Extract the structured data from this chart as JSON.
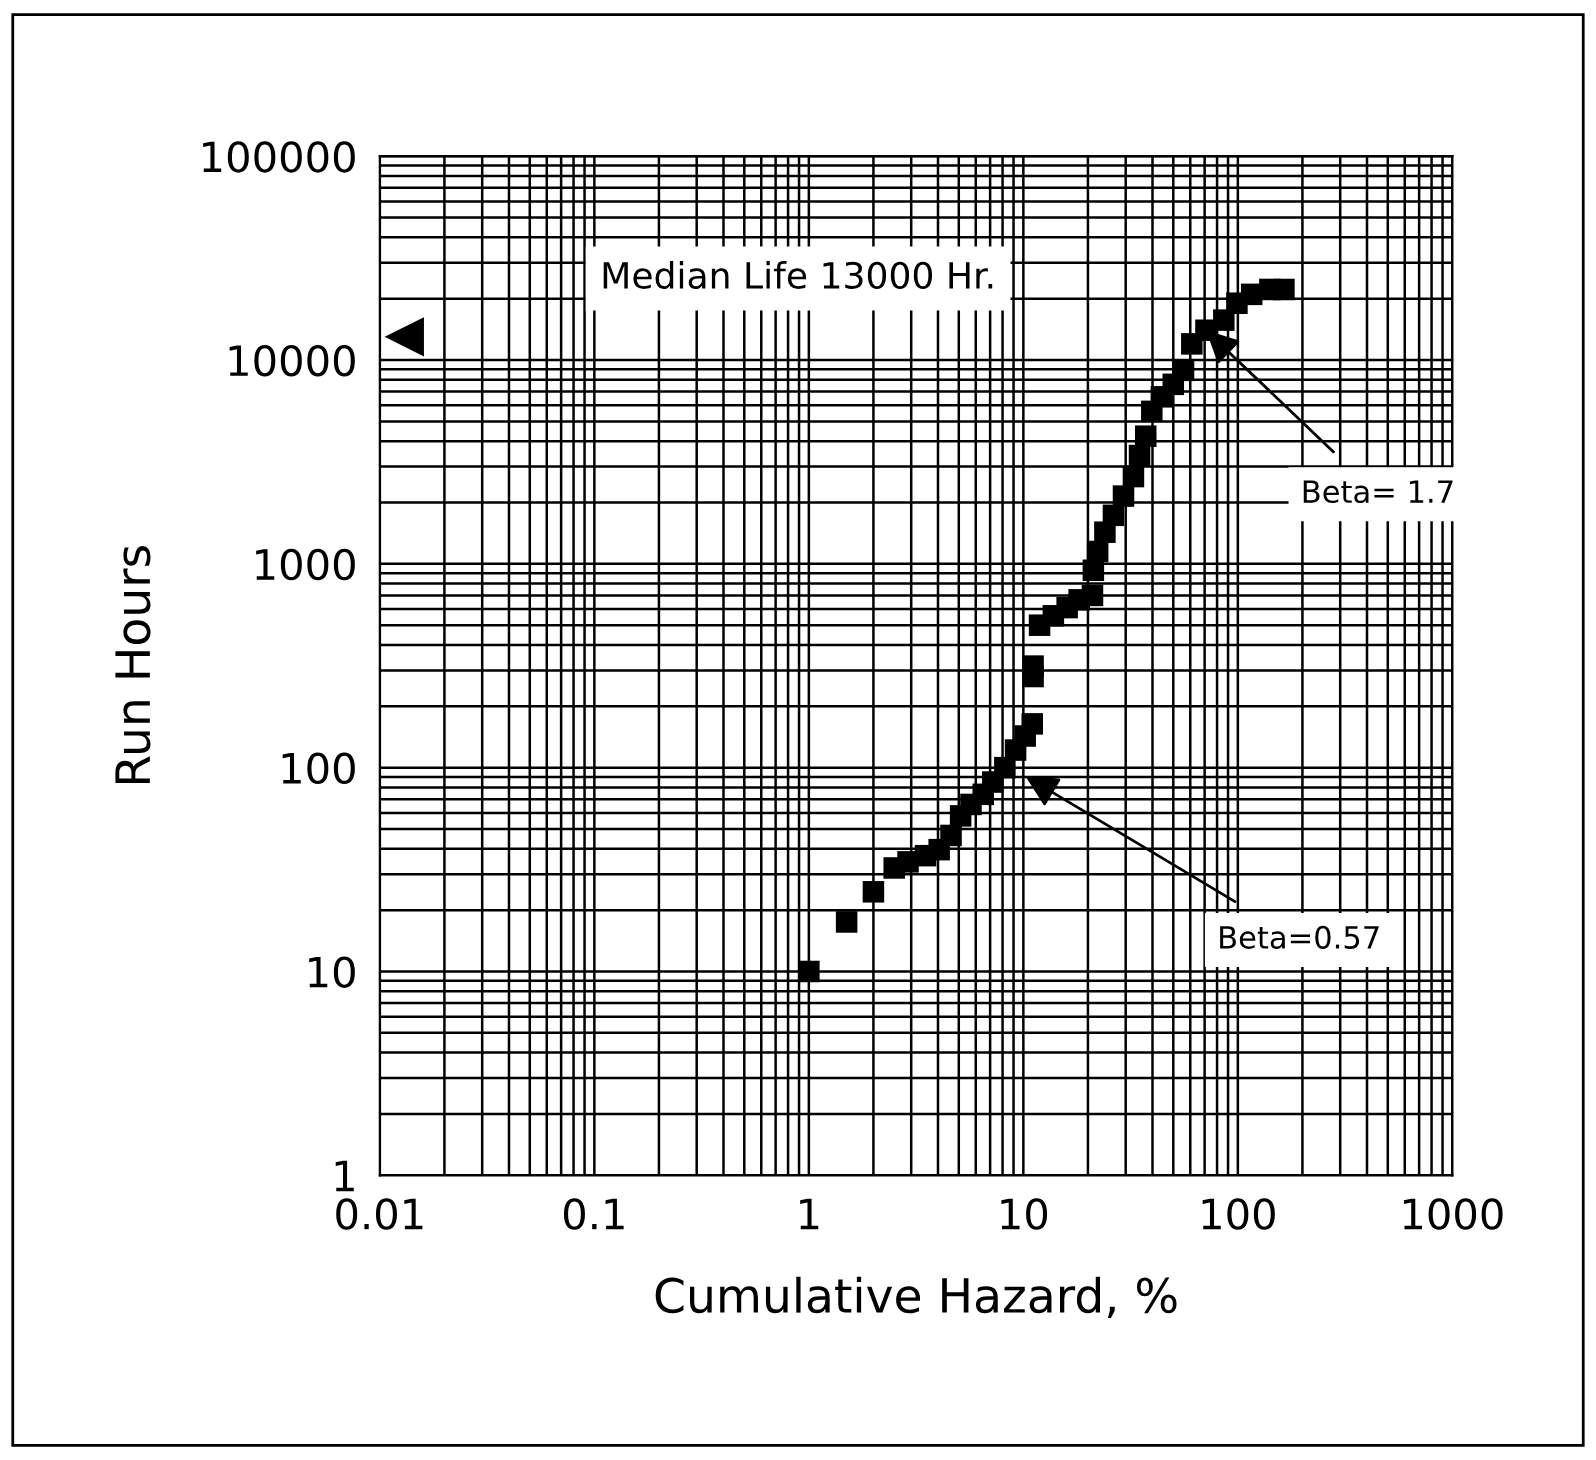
{
  "chart_data": {
    "type": "scatter",
    "xlabel": "Cumulative Hazard, %",
    "ylabel": "Run Hours",
    "log": "xy",
    "grid": true,
    "marker": "square",
    "xlim": [
      0.01,
      1000
    ],
    "xticks": [
      0.01,
      0.1,
      1,
      10,
      100,
      1000
    ],
    "ylim": [
      1,
      100000
    ],
    "yticks": [
      1,
      10,
      100,
      1000,
      10000,
      100000
    ],
    "series": [
      {
        "color": "#000000",
        "x": [
          1.0,
          1.5,
          2.0,
          2.5,
          2.9,
          3.5,
          4.05,
          4.6,
          5.1,
          5.7,
          6.5,
          7.2,
          8.2,
          9.2,
          10.2,
          11,
          11.1,
          11.1,
          11.9,
          13.8,
          16,
          18.2,
          21,
          21.2,
          22.2,
          24,
          26.3,
          29.3,
          32.6,
          34.8,
          37.2,
          39.7,
          44,
          50,
          55.8,
          61,
          71,
          86,
          99,
          116,
          141,
          164
        ],
        "values": [
          10,
          17.5,
          24.6,
          32.2,
          34.5,
          37,
          39.6,
          46.5,
          58,
          66,
          74,
          85,
          100,
          122,
          143,
          164,
          280,
          315,
          500,
          556,
          610,
          666,
          700,
          930,
          1150,
          1430,
          1730,
          2150,
          2680,
          3400,
          4230,
          5600,
          6600,
          7600,
          8900,
          12000,
          14000,
          15700,
          19000,
          21000,
          22200,
          22200
        ]
      },
      {
        "color": "#000000",
        "marker": "triangle",
        "x": [
          0.013
        ],
        "values": [
          13000
        ]
      }
    ],
    "annotations": [
      "Median Life 13000 Hr.",
      {
        "text": "Beta= 1.7",
        "x": 71,
        "y": 14000
      },
      {
        "text": "Beta=0.57",
        "x": 10.2,
        "y": 91
      }
    ]
  }
}
